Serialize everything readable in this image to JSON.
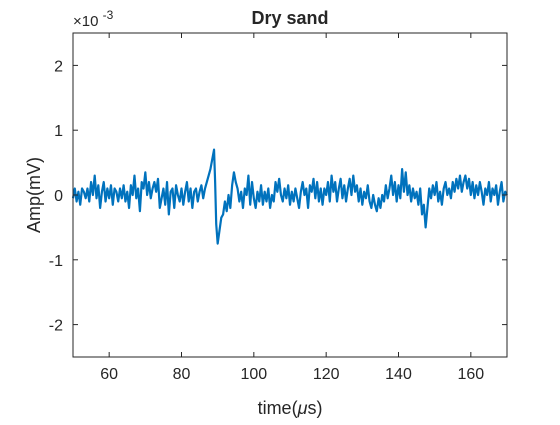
{
  "chart_data": {
    "type": "line",
    "title": "Dry sand",
    "xlabel_text": "time(",
    "xlabel_mu": "μ",
    "xlabel_end": "s)",
    "ylabel": "Amp(mV)",
    "exponent_times": "×10",
    "exponent_power": "-3",
    "xlim": [
      50,
      170
    ],
    "ylim": [
      -2.5,
      2.5
    ],
    "xticks": [
      60,
      80,
      100,
      120,
      140,
      160
    ],
    "xtick_labels": [
      "60",
      "80",
      "100",
      "120",
      "140",
      "160"
    ],
    "yticks": [
      -2,
      -1,
      0,
      1,
      2
    ],
    "ytick_labels": [
      "-2",
      "-1",
      "0",
      "1",
      "2"
    ],
    "grid": false,
    "series": [
      {
        "name": "Dry sand",
        "color": "#0072BD",
        "points": [
          [
            50,
            -0.05
          ],
          [
            50.5,
            0.1
          ],
          [
            51,
            -0.1
          ],
          [
            51.5,
            0.05
          ],
          [
            52,
            -0.15
          ],
          [
            52.5,
            0.1
          ],
          [
            53,
            0.05
          ],
          [
            53.5,
            -0.05
          ],
          [
            54,
            0.1
          ],
          [
            54.5,
            -0.1
          ],
          [
            55,
            0.2
          ],
          [
            55.5,
            0.0
          ],
          [
            56,
            0.3
          ],
          [
            56.5,
            -0.05
          ],
          [
            57,
            0.15
          ],
          [
            57.5,
            -0.2
          ],
          [
            58,
            0.05
          ],
          [
            58.5,
            0.2
          ],
          [
            59,
            -0.1
          ],
          [
            59.5,
            0.1
          ],
          [
            60,
            -0.05
          ],
          [
            60.5,
            0.15
          ],
          [
            61,
            -0.15
          ],
          [
            61.5,
            0.1
          ],
          [
            62,
            0.05
          ],
          [
            62.5,
            -0.1
          ],
          [
            63,
            0.1
          ],
          [
            63.5,
            -0.05
          ],
          [
            64,
            0.15
          ],
          [
            64.5,
            -0.1
          ],
          [
            65,
            0.05
          ],
          [
            65.5,
            -0.2
          ],
          [
            66,
            0.15
          ],
          [
            66.5,
            0.0
          ],
          [
            67,
            0.3
          ],
          [
            67.5,
            -0.05
          ],
          [
            68,
            0.1
          ],
          [
            68.5,
            -0.25
          ],
          [
            69,
            0.2
          ],
          [
            69.5,
            0.1
          ],
          [
            70,
            0.35
          ],
          [
            70.5,
            0.0
          ],
          [
            71,
            0.2
          ],
          [
            71.5,
            -0.05
          ],
          [
            72,
            0.1
          ],
          [
            72.5,
            0.2
          ],
          [
            73,
            0.05
          ],
          [
            73.5,
            0.25
          ],
          [
            74,
            -0.2
          ],
          [
            74.5,
            -0.05
          ],
          [
            75,
            0.1
          ],
          [
            75.5,
            -0.15
          ],
          [
            76,
            0.2
          ],
          [
            76.5,
            -0.3
          ],
          [
            77,
            0.05
          ],
          [
            77.5,
            0.1
          ],
          [
            78,
            -0.2
          ],
          [
            78.5,
            0.15
          ],
          [
            79,
            0.0
          ],
          [
            79.5,
            -0.1
          ],
          [
            80,
            0.1
          ],
          [
            80.5,
            -0.15
          ],
          [
            81,
            0.05
          ],
          [
            81.5,
            0.2
          ],
          [
            82,
            -0.1
          ],
          [
            82.5,
            0.1
          ],
          [
            83,
            -0.2
          ],
          [
            83.5,
            0.05
          ],
          [
            84,
            0.1
          ],
          [
            84.5,
            -0.1
          ],
          [
            85,
            0.05
          ],
          [
            85.5,
            0.15
          ],
          [
            86,
            -0.05
          ],
          [
            86.5,
            0.1
          ],
          [
            87,
            0.2
          ],
          [
            87.5,
            0.3
          ],
          [
            88,
            0.4
          ],
          [
            88.5,
            0.55
          ],
          [
            89,
            0.7
          ],
          [
            89.3,
            0.2
          ],
          [
            89.6,
            -0.45
          ],
          [
            90,
            -0.75
          ],
          [
            90.5,
            -0.55
          ],
          [
            91,
            -0.35
          ],
          [
            91.5,
            -0.3
          ],
          [
            92,
            -0.1
          ],
          [
            92.5,
            -0.25
          ],
          [
            93,
            0.0
          ],
          [
            93.5,
            -0.2
          ],
          [
            94,
            0.15
          ],
          [
            94.5,
            0.35
          ],
          [
            95,
            0.2
          ],
          [
            95.5,
            0.1
          ],
          [
            96,
            -0.1
          ],
          [
            96.5,
            0.05
          ],
          [
            97,
            -0.2
          ],
          [
            97.5,
            0.1
          ],
          [
            98,
            0.0
          ],
          [
            98.5,
            0.3
          ],
          [
            99,
            -0.15
          ],
          [
            99.5,
            0.2
          ],
          [
            100,
            -0.05
          ],
          [
            100.5,
            -0.2
          ],
          [
            101,
            0.05
          ],
          [
            101.5,
            -0.1
          ],
          [
            102,
            0.15
          ],
          [
            102.5,
            -0.15
          ],
          [
            103,
            0.05
          ],
          [
            103.5,
            -0.1
          ],
          [
            104,
            0.1
          ],
          [
            104.5,
            -0.2
          ],
          [
            105,
            0.0
          ],
          [
            105.5,
            -0.1
          ],
          [
            106,
            0.2
          ],
          [
            106.5,
            0.05
          ],
          [
            107,
            0.25
          ],
          [
            107.5,
            0.0
          ],
          [
            108,
            -0.1
          ],
          [
            108.5,
            0.1
          ],
          [
            109,
            -0.05
          ],
          [
            109.5,
            0.15
          ],
          [
            110,
            -0.15
          ],
          [
            110.5,
            0.05
          ],
          [
            111,
            -0.1
          ],
          [
            111.5,
            0.1
          ],
          [
            112,
            -0.05
          ],
          [
            112.5,
            -0.2
          ],
          [
            113,
            0.05
          ],
          [
            113.5,
            0.2
          ],
          [
            114,
            0.0
          ],
          [
            114.5,
            0.1
          ],
          [
            115,
            -0.2
          ],
          [
            115.5,
            0.15
          ],
          [
            116,
            0.05
          ],
          [
            116.5,
            0.25
          ],
          [
            117,
            -0.05
          ],
          [
            117.5,
            0.2
          ],
          [
            118,
            -0.1
          ],
          [
            118.5,
            0.1
          ],
          [
            119,
            -0.15
          ],
          [
            119.5,
            0.1
          ],
          [
            120,
            0.0
          ],
          [
            120.5,
            0.2
          ],
          [
            121,
            -0.1
          ],
          [
            121.5,
            0.3
          ],
          [
            122,
            0.05
          ],
          [
            122.5,
            0.2
          ],
          [
            123,
            -0.1
          ],
          [
            123.5,
            0.1
          ],
          [
            124,
            0.25
          ],
          [
            124.5,
            -0.05
          ],
          [
            125,
            0.15
          ],
          [
            125.5,
            -0.1
          ],
          [
            126,
            0.1
          ],
          [
            126.5,
            0.25
          ],
          [
            127,
            0.0
          ],
          [
            127.5,
            0.3
          ],
          [
            128,
            0.05
          ],
          [
            128.5,
            0.15
          ],
          [
            129,
            -0.1
          ],
          [
            129.5,
            0.1
          ],
          [
            130,
            -0.15
          ],
          [
            130.5,
            0.05
          ],
          [
            131,
            -0.05
          ],
          [
            131.5,
            0.15
          ],
          [
            132,
            -0.1
          ],
          [
            132.5,
            -0.2
          ],
          [
            133,
            0.0
          ],
          [
            133.5,
            -0.15
          ],
          [
            134,
            -0.25
          ],
          [
            134.5,
            -0.05
          ],
          [
            135,
            -0.2
          ],
          [
            135.5,
            0.0
          ],
          [
            136,
            -0.1
          ],
          [
            136.5,
            0.15
          ],
          [
            137,
            -0.05
          ],
          [
            137.5,
            0.1
          ],
          [
            138,
            0.3
          ],
          [
            138.5,
            0.0
          ],
          [
            139,
            0.2
          ],
          [
            139.5,
            -0.1
          ],
          [
            140,
            0.15
          ],
          [
            140.5,
            -0.05
          ],
          [
            141,
            0.4
          ],
          [
            141.5,
            0.05
          ],
          [
            142,
            0.35
          ],
          [
            142.5,
            0.0
          ],
          [
            143,
            0.15
          ],
          [
            143.5,
            -0.1
          ],
          [
            144,
            0.1
          ],
          [
            144.5,
            -0.05
          ],
          [
            145,
            0.05
          ],
          [
            145.5,
            -0.15
          ],
          [
            146,
            0.1
          ],
          [
            146.5,
            -0.3
          ],
          [
            147,
            -0.15
          ],
          [
            147.5,
            -0.5
          ],
          [
            148,
            -0.2
          ],
          [
            148.5,
            0.1
          ],
          [
            149,
            -0.05
          ],
          [
            149.5,
            0.15
          ],
          [
            150,
            0.0
          ],
          [
            150.5,
            0.2
          ],
          [
            151,
            -0.1
          ],
          [
            151.5,
            0.05
          ],
          [
            152,
            -0.15
          ],
          [
            152.5,
            0.1
          ],
          [
            153,
            0.2
          ],
          [
            153.5,
            0.0
          ],
          [
            154,
            0.1
          ],
          [
            154.5,
            -0.05
          ],
          [
            155,
            0.2
          ],
          [
            155.5,
            0.05
          ],
          [
            156,
            0.25
          ],
          [
            156.5,
            0.1
          ],
          [
            157,
            0.3
          ],
          [
            157.5,
            0.05
          ],
          [
            158,
            0.2
          ],
          [
            158.5,
            0.3
          ],
          [
            159,
            0.1
          ],
          [
            159.5,
            0.25
          ],
          [
            160,
            0.0
          ],
          [
            160.5,
            0.2
          ],
          [
            161,
            -0.05
          ],
          [
            161.5,
            0.15
          ],
          [
            162,
            0.0
          ],
          [
            162.5,
            0.2
          ],
          [
            163,
            0.05
          ],
          [
            163.5,
            -0.15
          ],
          [
            164,
            0.1
          ],
          [
            164.5,
            0.0
          ],
          [
            165,
            0.2
          ],
          [
            165.5,
            -0.1
          ],
          [
            166,
            0.1
          ],
          [
            166.5,
            0.0
          ],
          [
            167,
            0.15
          ],
          [
            167.5,
            -0.15
          ],
          [
            168,
            0.05
          ],
          [
            168.5,
            0.2
          ],
          [
            169,
            -0.1
          ],
          [
            169.5,
            0.05
          ],
          [
            170,
            0.0
          ]
        ]
      }
    ]
  }
}
